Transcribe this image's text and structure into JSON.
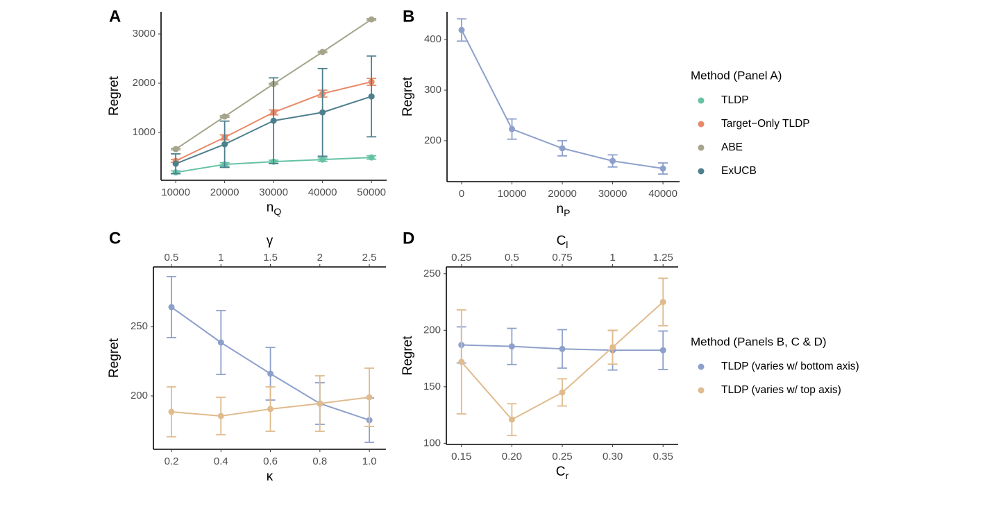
{
  "chart_data": [
    {
      "type": "line",
      "label": "A",
      "ylabel": "Regret",
      "xlabel": "n",
      "xlabel_sub": "Q",
      "legend_title": "Method (Panel A)",
      "x": [
        10000,
        20000,
        30000,
        40000,
        50000
      ],
      "xlim": [
        7000,
        53100
      ],
      "xticks": [
        10000,
        20000,
        30000,
        40000,
        50000
      ],
      "ylim": [
        30,
        3450
      ],
      "yticks": [
        1000,
        2000,
        3000
      ],
      "series": [
        {
          "name": "TLDP",
          "color": "#66c2a5",
          "values": [
            190,
            352,
            408,
            450,
            493
          ],
          "errors": [
            30,
            35,
            30,
            35,
            35
          ]
        },
        {
          "name": "Target−Only TLDP",
          "color": "#e78a6a",
          "values": [
            423,
            901,
            1408,
            1789,
            2028
          ],
          "errors": [
            30,
            50,
            50,
            70,
            70
          ]
        },
        {
          "name": "ABE",
          "color": "#a5a58b",
          "values": [
            662,
            1324,
            1986,
            2634,
            3296
          ],
          "errors": [
            15,
            15,
            15,
            15,
            15
          ]
        },
        {
          "name": "ExUCB",
          "color": "#4e7f8d",
          "values": [
            366,
            761,
            1239,
            1408,
            1732
          ],
          "errors": [
            200,
            470,
            870,
            890,
            820
          ]
        }
      ]
    },
    {
      "type": "line",
      "label": "B",
      "ylabel": "Regret",
      "xlabel": "n",
      "xlabel_sub": "P",
      "x": [
        0,
        10000,
        20000,
        30000,
        40000
      ],
      "xlim": [
        -2900,
        43300
      ],
      "xticks": [
        0,
        10000,
        20000,
        30000,
        40000
      ],
      "ylim": [
        119,
        455
      ],
      "yticks": [
        200,
        300,
        400
      ],
      "series": [
        {
          "color": "#8da0cb",
          "values": [
            419,
            223,
            185,
            160,
            145
          ],
          "errors": [
            22,
            20,
            15,
            12,
            11
          ]
        }
      ]
    },
    {
      "type": "line",
      "label": "C",
      "ylabel": "Regret",
      "xlabel": "κ",
      "x2label": "γ",
      "legend_title": "Method (Panels B, C & D)",
      "xlim": [
        0.127,
        1.067
      ],
      "xticks": [
        0.2,
        0.4,
        0.6,
        0.8,
        {
          "value": 1.0,
          "label": "1.0"
        }
      ],
      "x2lim": [
        0.318,
        2.668
      ],
      "x2ticks": [
        0.5,
        1,
        1.5,
        2,
        2.5
      ],
      "ylim": [
        161.5,
        293
      ],
      "yticks": [
        200,
        250
      ],
      "series": [
        {
          "name": "TLDP (varies w/ bottom axis)",
          "color": "#8da0cb",
          "x": [
            0.2,
            0.4,
            0.6,
            0.8,
            1.0
          ],
          "values": [
            264,
            238.5,
            216,
            194.5,
            182.5
          ],
          "errors": [
            22,
            23,
            19,
            15,
            16
          ]
        },
        {
          "name": "TLDP (varies w/ top axis)",
          "color": "#e0bb8d",
          "axis": "x2",
          "x": [
            0.5,
            1,
            1.5,
            2,
            2.5
          ],
          "values": [
            188.5,
            185.5,
            190.5,
            194.5,
            199
          ],
          "errors": [
            18,
            13.5,
            16,
            20,
            21
          ]
        }
      ]
    },
    {
      "type": "line",
      "label": "D",
      "ylabel": "Regret",
      "xlabel": "C",
      "xlabel_sub": "r",
      "x2label": "C",
      "x2label_sub": "l",
      "xlim": [
        0.135,
        0.365
      ],
      "xticks": [
        {
          "value": 0.15,
          "label": "0.15"
        },
        {
          "value": 0.2,
          "label": "0.20"
        },
        {
          "value": 0.25,
          "label": "0.25"
        },
        {
          "value": 0.3,
          "label": "0.30"
        },
        {
          "value": 0.35,
          "label": "0.35"
        }
      ],
      "x2lim": [
        0.175,
        1.325
      ],
      "x2ticks": [
        0.25,
        0.5,
        0.75,
        1,
        1.25
      ],
      "ylim": [
        99,
        256
      ],
      "yticks": [
        100,
        150,
        200,
        250
      ],
      "series": [
        {
          "color": "#8da0cb",
          "x": [
            0.15,
            0.2,
            0.25,
            0.3,
            0.35
          ],
          "values": [
            187,
            185.7,
            183.5,
            182.3,
            182.3
          ],
          "errors": [
            16,
            16,
            17,
            17.5,
            17
          ]
        },
        {
          "color": "#e0bb8d",
          "axis": "x2",
          "x": [
            0.25,
            0.5,
            0.75,
            1,
            1.25
          ],
          "values": [
            172,
            121,
            145,
            185,
            225
          ],
          "errors": [
            46,
            14,
            12,
            15,
            21
          ]
        }
      ]
    }
  ]
}
